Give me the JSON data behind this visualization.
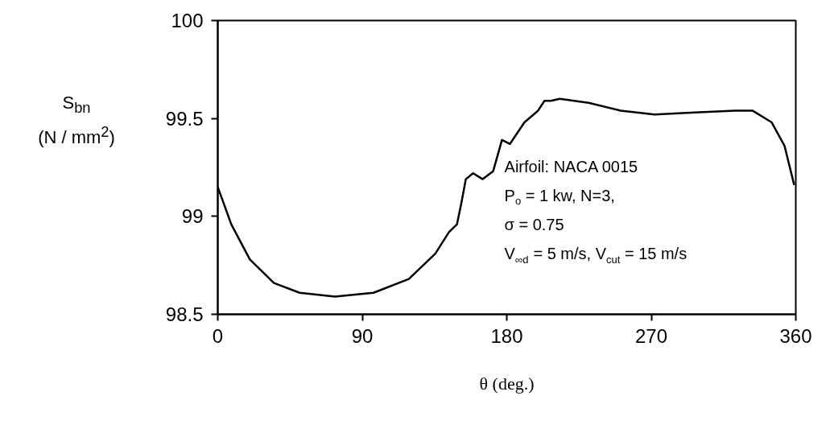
{
  "chart_data": {
    "type": "line",
    "xlabel": "θ (deg.)",
    "ylabel": "S$_{bn}$\n(N / mm$^{2}$)",
    "annotations": [
      "Airfoil: NACA 0015",
      "P$_{o}$ = 1 kw, N=3,",
      "σ = 0.75",
      "V$_{∞d}$ = 5 m/s, V$_{cut}$ = 15 m/s"
    ],
    "series": [
      {
        "color": "#000000",
        "x": [
          0,
          8.4,
          20,
          35,
          51,
          73,
          97,
          119,
          135.5,
          144,
          149,
          152,
          154.5,
          159,
          165,
          171.5,
          177,
          182,
          191,
          199.5,
          203.5,
          207.5,
          213,
          231,
          251,
          272,
          297,
          322,
          333,
          345,
          353,
          359
        ],
        "values": [
          99.15,
          98.96,
          98.78,
          98.66,
          98.61,
          98.59,
          98.61,
          98.68,
          98.81,
          98.92,
          98.96,
          99.08,
          99.19,
          99.22,
          99.19,
          99.23,
          99.39,
          99.37,
          99.48,
          99.54,
          99.59,
          99.59,
          99.6,
          99.58,
          99.54,
          99.52,
          99.53,
          99.54,
          99.54,
          99.48,
          99.36,
          99.16
        ]
      }
    ],
    "xlim": [
      0,
      360
    ],
    "xticks": [
      0,
      90,
      180,
      270,
      360
    ],
    "ylim": [
      98.5,
      100
    ],
    "yticks": [
      98.5,
      99,
      99.5,
      100
    ],
    "grid": false,
    "marker": "none",
    "line_style": "solid"
  }
}
